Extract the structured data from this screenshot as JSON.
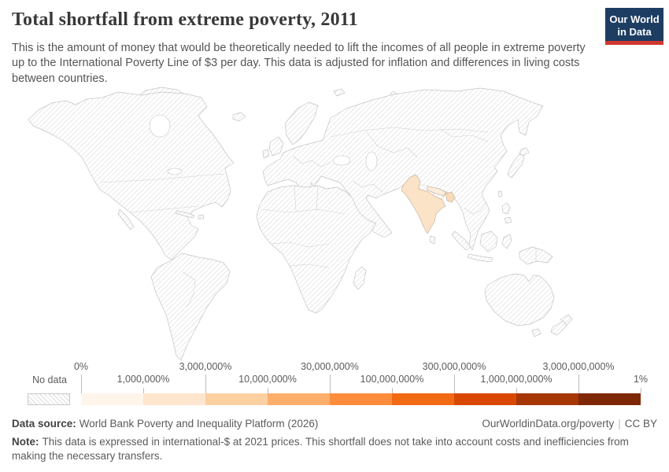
{
  "header": {
    "title": "Total shortfall from extreme poverty, 2011",
    "subtitle": "This is the amount of money that would be theoretically needed to lift the incomes of all people in extreme poverty up to the International Poverty Line of $3 per day. This data is adjusted for inflation and differences in living costs between countries.",
    "logo": {
      "line1": "Our World",
      "line2": "in Data",
      "bg_color": "#1d3d63",
      "bar_color": "#d0382f"
    }
  },
  "map": {
    "countries": [
      {
        "name": "India",
        "color": "#fbe3c8"
      },
      {
        "name": "Bangladesh",
        "color": "#f8d9b8"
      },
      {
        "name": "Nepal",
        "color": "#fdeedd"
      }
    ],
    "no_data_pattern": "diagonal-hatch",
    "border_color": "#c4c4c4"
  },
  "legend": {
    "no_data_label": "No data",
    "tick_labels_top": [
      "0%",
      "3,000,000%",
      "30,000,000%",
      "300,000,000%",
      "3,000,000,000%"
    ],
    "tick_labels_bottom": [
      "1,000,000%",
      "10,000,000%",
      "100,000,000%",
      "1,000,000,000%",
      "1%"
    ],
    "colors": [
      "#fff5eb",
      "#fee6ce",
      "#fdd0a2",
      "#fdae6b",
      "#fd8d3c",
      "#f16913",
      "#d94801",
      "#a63603",
      "#7f2704"
    ]
  },
  "footer": {
    "source_label": "Data source:",
    "source_text": "World Bank Poverty and Inequality Platform (2026)",
    "link_text": "OurWorldinData.org/poverty",
    "separator": "|",
    "license": "CC BY",
    "note_label": "Note:",
    "note_text": "This data is expressed in international-$ at 2021 prices. This shortfall does not take into account costs and inefficiencies from making the necessary transfers."
  },
  "chart_data": {
    "type": "choropleth_map",
    "title": "Total shortfall from extreme poverty, 2011",
    "legend_bin_edges": [
      "0%",
      "1,000,000%",
      "3,000,000%",
      "10,000,000%",
      "30,000,000%",
      "100,000,000%",
      "300,000,000%",
      "1,000,000,000%",
      "3,000,000,000%",
      "1%"
    ],
    "legend_bin_colors": [
      "#fff5eb",
      "#fee6ce",
      "#fdd0a2",
      "#fdae6b",
      "#fd8d3c",
      "#f16913",
      "#d94801",
      "#a63603",
      "#7f2704"
    ],
    "countries_with_data": [
      {
        "name": "India",
        "shade": "light (second bin)"
      },
      {
        "name": "Bangladesh",
        "shade": "light (second bin)"
      },
      {
        "name": "Nepal",
        "shade": "lightest (first bin)"
      }
    ],
    "all_other_countries": "No data (hatched)"
  }
}
